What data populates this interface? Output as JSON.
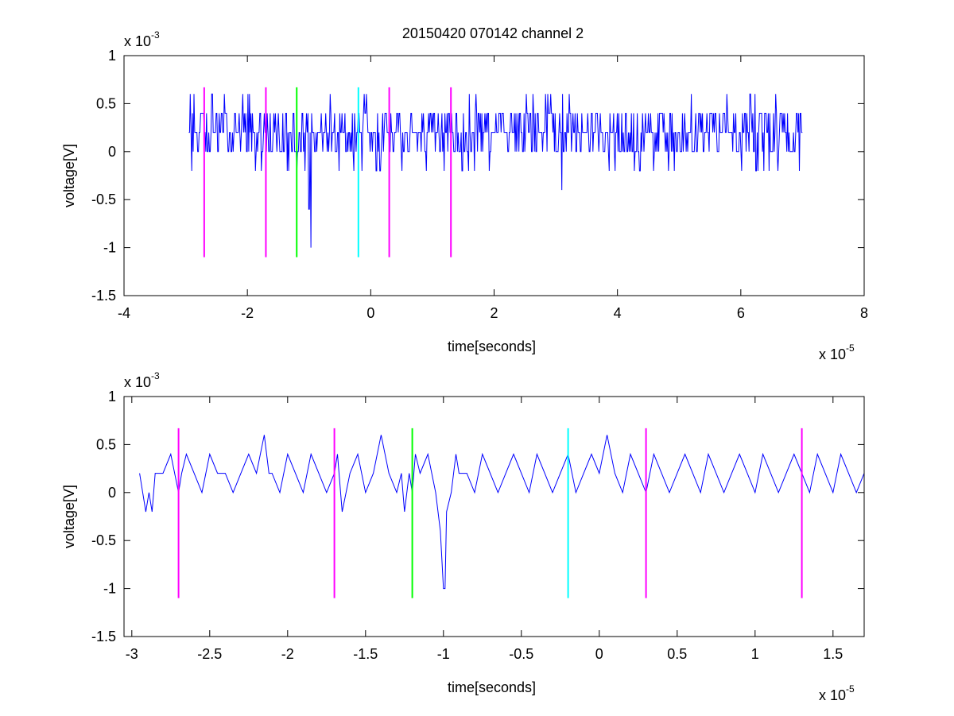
{
  "figure": {
    "title": "20150420 070142 channel 2"
  },
  "chart_data": [
    {
      "type": "line",
      "title": "20150420 070142 channel 2",
      "xlabel": "time[seconds]",
      "ylabel": "voltage[V]",
      "x_multiplier": {
        "base": "x 10",
        "exp": "-5"
      },
      "y_multiplier": {
        "base": "x 10",
        "exp": "-3"
      },
      "xlim": [
        -4,
        8
      ],
      "ylim": [
        -1.5,
        1
      ],
      "xticks": [
        -4,
        -2,
        0,
        2,
        4,
        6,
        8
      ],
      "xtick_labels": [
        "-4",
        "-2",
        "0",
        "2",
        "4",
        "6",
        "8"
      ],
      "yticks": [
        -1.5,
        -1,
        -0.5,
        0,
        0.5,
        1
      ],
      "ytick_labels": [
        "-1.5",
        "-1",
        "-0.5",
        "0",
        "0.5",
        "1"
      ],
      "grid": false,
      "series": [
        {
          "color": "#0000ff",
          "x_range": [
            -2.95,
            7.0
          ],
          "baseline": 0.2,
          "levels": [
            -0.2,
            0,
            0.2,
            0.4,
            0.6
          ],
          "x": [
            -2.95,
            -2.9,
            -2.85,
            -2.8,
            -2.75,
            -2.7,
            -2.6,
            -2.5,
            -2.4,
            -2.3,
            -2.2,
            -2.1,
            -2.0,
            -1.9,
            -1.8,
            -1.7,
            -1.6,
            -1.5,
            -1.4,
            -1.3,
            -1.2,
            -1.15,
            -1.1,
            -1.05,
            -1.0,
            -0.97,
            -0.95,
            -0.9,
            -0.8,
            -0.6,
            -0.4,
            -0.2,
            0.0,
            0.3,
            1.0,
            2.0,
            3.0,
            3.1,
            3.2,
            4.0,
            5.0,
            6.0,
            6.6,
            6.7,
            6.8,
            7.0
          ],
          "y": [
            0.2,
            -0.2,
            0.2,
            0.0,
            0.4,
            0.2,
            0.0,
            0.4,
            0.2,
            0.0,
            0.4,
            0.2,
            0.0,
            0.2,
            0.4,
            0.2,
            0.0,
            0.4,
            0.0,
            0.2,
            -0.2,
            0.2,
            0.4,
            0.2,
            -0.6,
            -1.0,
            0.2,
            0.0,
            0.4,
            0.2,
            0.0,
            0.4,
            0.2,
            0.0,
            0.4,
            0.2,
            0.0,
            -0.4,
            0.2,
            0.4,
            0.2,
            0.0,
            -0.2,
            0.2,
            0.0,
            0.2
          ]
        }
      ],
      "vlines": [
        {
          "x": -2.7,
          "y0": -1.1,
          "y1": 0.67,
          "color": "#ff00ff"
        },
        {
          "x": -1.7,
          "y0": -1.1,
          "y1": 0.67,
          "color": "#ff00ff"
        },
        {
          "x": -1.2,
          "y0": -1.1,
          "y1": 0.67,
          "color": "#00ff00"
        },
        {
          "x": -0.2,
          "y0": -1.1,
          "y1": 0.67,
          "color": "#00ffff"
        },
        {
          "x": 0.3,
          "y0": -1.1,
          "y1": 0.67,
          "color": "#ff00ff"
        },
        {
          "x": 1.3,
          "y0": -1.1,
          "y1": 0.67,
          "color": "#ff00ff"
        }
      ]
    },
    {
      "type": "line",
      "title": "",
      "xlabel": "time[seconds]",
      "ylabel": "voltage[V]",
      "x_multiplier": {
        "base": "x 10",
        "exp": "-5"
      },
      "y_multiplier": {
        "base": "x 10",
        "exp": "-3"
      },
      "xlim": [
        -3.05,
        1.7
      ],
      "ylim": [
        -1.5,
        1
      ],
      "xticks": [
        -3,
        -2.5,
        -2,
        -1.5,
        -1,
        -0.5,
        0,
        0.5,
        1,
        1.5
      ],
      "xtick_labels": [
        "-3",
        "-2.5",
        "-2",
        "-1.5",
        "-1",
        "-0.5",
        "0",
        "0.5",
        "1",
        "1.5"
      ],
      "yticks": [
        -1.5,
        -1,
        -0.5,
        0,
        0.5,
        1
      ],
      "ytick_labels": [
        "-1.5",
        "-1",
        "-0.5",
        "0",
        "0.5",
        "1"
      ],
      "grid": false,
      "series": [
        {
          "color": "#0000ff",
          "x": [
            -2.95,
            -2.93,
            -2.91,
            -2.89,
            -2.87,
            -2.85,
            -2.8,
            -2.75,
            -2.7,
            -2.68,
            -2.65,
            -2.6,
            -2.55,
            -2.5,
            -2.45,
            -2.4,
            -2.35,
            -2.3,
            -2.25,
            -2.2,
            -2.15,
            -2.12,
            -2.1,
            -2.05,
            -2.0,
            -1.95,
            -1.9,
            -1.85,
            -1.8,
            -1.75,
            -1.7,
            -1.68,
            -1.65,
            -1.6,
            -1.55,
            -1.5,
            -1.45,
            -1.4,
            -1.35,
            -1.3,
            -1.27,
            -1.25,
            -1.22,
            -1.2,
            -1.18,
            -1.15,
            -1.1,
            -1.05,
            -1.02,
            -1.0,
            -0.99,
            -0.98,
            -0.95,
            -0.92,
            -0.9,
            -0.85,
            -0.8,
            -0.75,
            -0.7,
            -0.65,
            -0.6,
            -0.55,
            -0.5,
            -0.45,
            -0.4,
            -0.35,
            -0.3,
            -0.25,
            -0.2,
            -0.15,
            -0.1,
            -0.05,
            0.0,
            0.05,
            0.1,
            0.15,
            0.2,
            0.25,
            0.3,
            0.35,
            0.4,
            0.45,
            0.5,
            0.55,
            0.6,
            0.65,
            0.7,
            0.75,
            0.8,
            0.85,
            0.9,
            0.95,
            1.0,
            1.05,
            1.1,
            1.15,
            1.2,
            1.25,
            1.3,
            1.35,
            1.4,
            1.45,
            1.5,
            1.55,
            1.6,
            1.65,
            1.7
          ],
          "y": [
            0.2,
            0.0,
            -0.2,
            0.0,
            -0.2,
            0.2,
            0.2,
            0.4,
            0.0,
            0.2,
            0.4,
            0.2,
            0.0,
            0.4,
            0.2,
            0.2,
            0.0,
            0.2,
            0.4,
            0.2,
            0.6,
            0.2,
            0.2,
            0.0,
            0.4,
            0.2,
            0.0,
            0.4,
            0.2,
            0.0,
            0.2,
            0.4,
            -0.2,
            0.2,
            0.4,
            0.0,
            0.2,
            0.6,
            0.2,
            0.0,
            0.2,
            -0.2,
            0.2,
            0.0,
            0.4,
            0.2,
            0.4,
            0.0,
            -0.4,
            -1.0,
            -1.0,
            -0.2,
            0.0,
            0.4,
            0.2,
            0.2,
            0.0,
            0.4,
            0.2,
            0.0,
            0.2,
            0.4,
            0.2,
            0.0,
            0.4,
            0.2,
            0.0,
            0.2,
            0.4,
            0.0,
            0.2,
            0.4,
            0.2,
            0.6,
            0.2,
            0.0,
            0.4,
            0.2,
            0.0,
            0.4,
            0.2,
            0.0,
            0.2,
            0.4,
            0.2,
            0.0,
            0.4,
            0.2,
            0.0,
            0.2,
            0.4,
            0.2,
            0.0,
            0.4,
            0.2,
            0.0,
            0.2,
            0.4,
            0.2,
            0.0,
            0.4,
            0.2,
            0.0,
            0.4,
            0.2,
            0.0,
            0.2
          ]
        }
      ],
      "vlines": [
        {
          "x": -2.7,
          "y0": -1.1,
          "y1": 0.67,
          "color": "#ff00ff"
        },
        {
          "x": -1.7,
          "y0": -1.1,
          "y1": 0.67,
          "color": "#ff00ff"
        },
        {
          "x": -1.2,
          "y0": -1.1,
          "y1": 0.67,
          "color": "#00ff00"
        },
        {
          "x": -0.2,
          "y0": -1.1,
          "y1": 0.67,
          "color": "#00ffff"
        },
        {
          "x": 0.3,
          "y0": -1.1,
          "y1": 0.67,
          "color": "#ff00ff"
        },
        {
          "x": 1.3,
          "y0": -1.1,
          "y1": 0.67,
          "color": "#ff00ff"
        }
      ]
    }
  ]
}
